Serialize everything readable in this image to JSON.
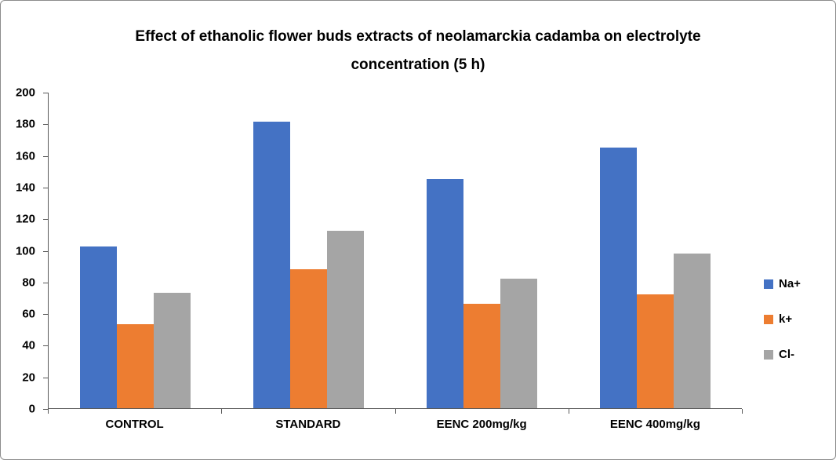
{
  "chart_data": {
    "type": "bar",
    "title": "Effect of ethanolic flower buds extracts of neolamarckia cadamba on electrolyte concentration (5 h)",
    "categories": [
      "CONTROL",
      "STANDARD",
      "EENC 200mg/kg",
      "EENC 400mg/kg"
    ],
    "series": [
      {
        "name": "Na+",
        "color": "#4472C4",
        "values": [
          102,
          181,
          145,
          165
        ]
      },
      {
        "name": "k+",
        "color": "#ED7D31",
        "values": [
          53,
          88,
          66,
          72
        ]
      },
      {
        "name": "Cl-",
        "color": "#A5A5A5",
        "values": [
          73,
          112,
          82,
          98
        ]
      }
    ],
    "ylim": [
      0,
      200
    ],
    "ytick_step": 20,
    "xlabel": "",
    "ylabel": "",
    "grid": false,
    "legend_position": "right"
  }
}
